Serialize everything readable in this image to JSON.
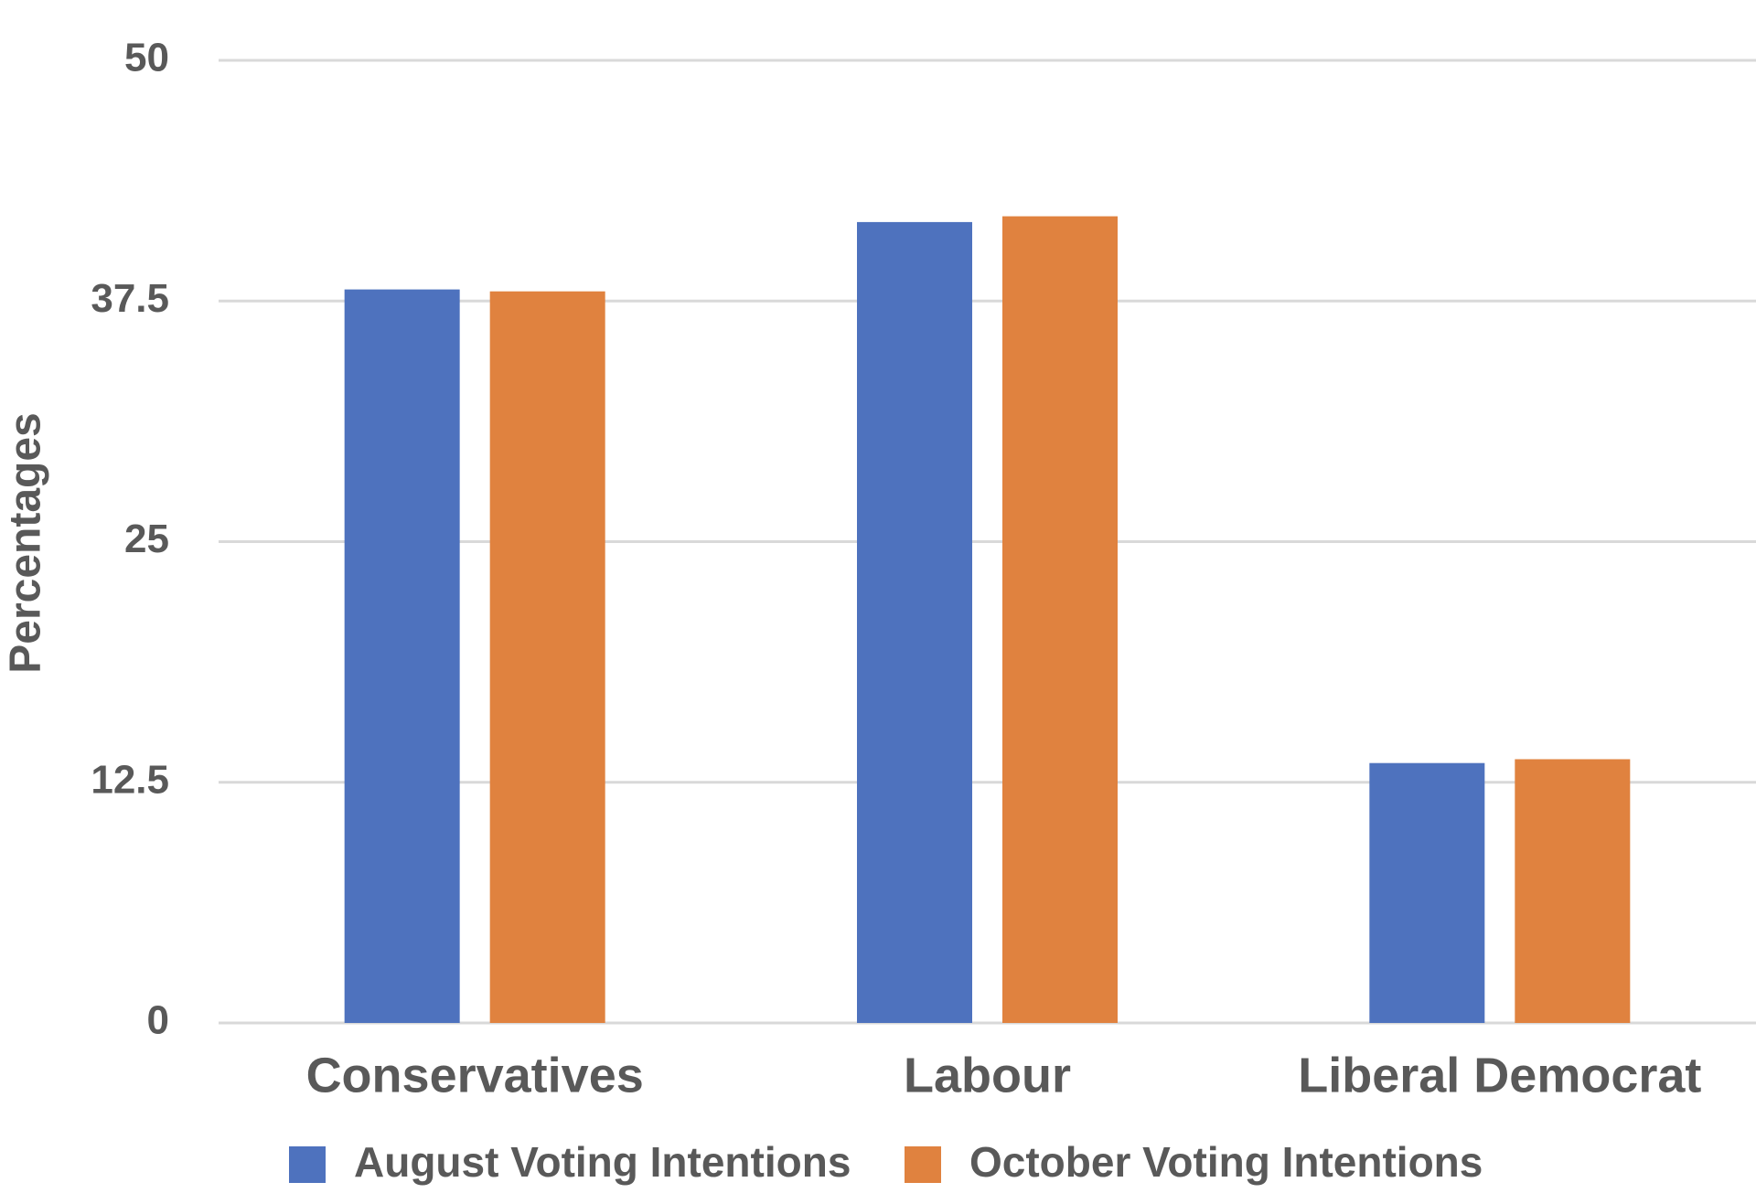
{
  "chart_data": {
    "type": "bar",
    "y_label": "Percentages",
    "categories": [
      "Conservatives",
      "Labour",
      "Liberal Democrat"
    ],
    "series": [
      {
        "name": "August Voting Intentions",
        "color": "#4e72be",
        "values": [
          38.1,
          41.6,
          13.5
        ]
      },
      {
        "name": "October Voting Intentions",
        "color": "#e0823f",
        "values": [
          38.0,
          41.9,
          13.7
        ]
      }
    ],
    "ylim": [
      0,
      50
    ],
    "yticks": [
      0,
      12.5,
      25,
      37.5,
      50
    ],
    "grid": true,
    "legend": "bottom"
  }
}
